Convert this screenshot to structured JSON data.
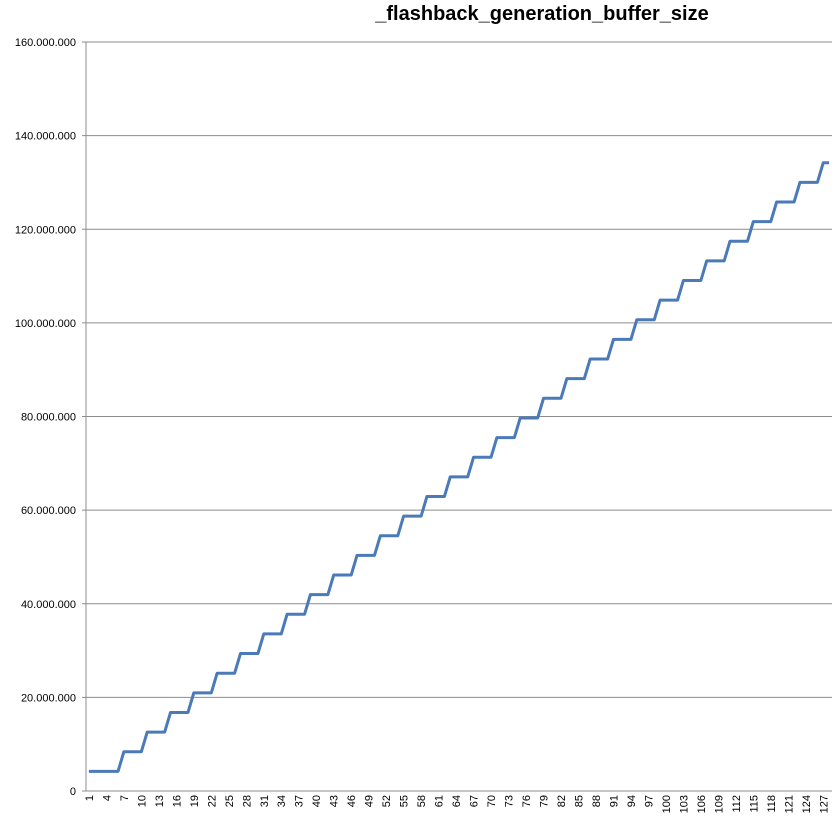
{
  "chart_data": {
    "type": "line",
    "title": "_flashback_generation_buffer_size",
    "xlabel": "",
    "ylabel": "",
    "ylim": [
      0,
      160000000
    ],
    "y_ticks": [
      0,
      20000000,
      40000000,
      60000000,
      80000000,
      100000000,
      120000000,
      140000000,
      160000000
    ],
    "y_tick_labels": [
      "0",
      "20.000.000",
      "40.000.000",
      "60.000.000",
      "80.000.000",
      "100.000.000",
      "120.000.000",
      "140.000.000",
      "160.000.000"
    ],
    "x_range": [
      1,
      128
    ],
    "x_tick_labels": [
      "1",
      "4",
      "7",
      "10",
      "13",
      "16",
      "19",
      "22",
      "25",
      "28",
      "31",
      "34",
      "37",
      "40",
      "43",
      "46",
      "49",
      "52",
      "55",
      "58",
      "61",
      "64",
      "67",
      "70",
      "73",
      "76",
      "79",
      "82",
      "85",
      "88",
      "91",
      "94",
      "97",
      "100",
      "103",
      "106",
      "109",
      "112",
      "115",
      "118",
      "121",
      "124",
      "127"
    ],
    "grid": true,
    "legend": "none",
    "series_color": "#4a7ab8",
    "step": {
      "first_value": 4194304,
      "increment": 4194304,
      "cpus_per_step": 4,
      "first_step_x": 7
    }
  }
}
